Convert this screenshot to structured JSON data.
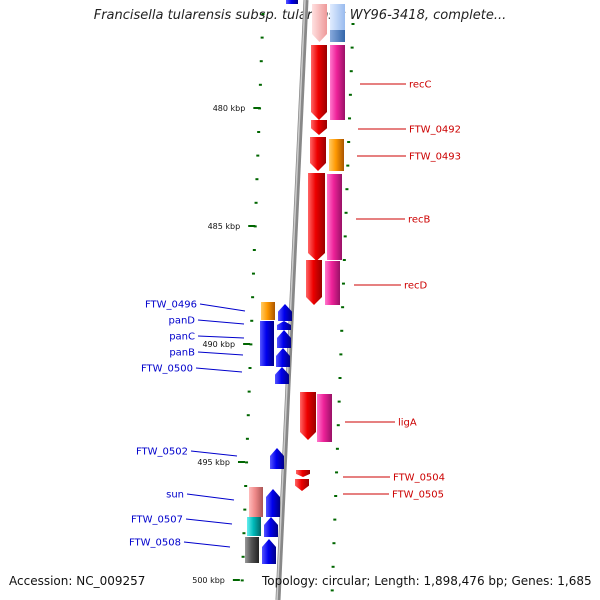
{
  "title": "Francisella tularensis subsp. tularensis WY96-3418, complete...",
  "footer": {
    "accession": "Accession: NC_009257",
    "topology": "Topology: circular; Length: 1,898,476 bp; Genes: 1,685"
  },
  "colors": {
    "forward_gene": "#ee0000",
    "forward_cds": "#ee2299",
    "reverse_gene": "#0000ee",
    "orange": "#ff9900",
    "teal": "#00bbbb",
    "salmon": "#ee8888",
    "gray": "#555555",
    "tick": "#006600",
    "backbone": "#888888"
  },
  "diagram": {
    "kbp_labels": [
      {
        "label": "480 kbp",
        "kbp": 480
      },
      {
        "label": "485 kbp",
        "kbp": 485
      },
      {
        "label": "490 kbp",
        "kbp": 490
      },
      {
        "label": "495 kbp",
        "kbp": 495
      },
      {
        "label": "500 kbp",
        "kbp": 500
      }
    ],
    "genes_right": [
      {
        "name": "recC"
      },
      {
        "name": "FTW_0492"
      },
      {
        "name": "FTW_0493"
      },
      {
        "name": "recB"
      },
      {
        "name": "recD"
      },
      {
        "name": "ligA"
      },
      {
        "name": "FTW_0504"
      },
      {
        "name": "FTW_0505"
      }
    ],
    "genes_left": [
      {
        "name": "FTW_0496"
      },
      {
        "name": "panD"
      },
      {
        "name": "panC"
      },
      {
        "name": "panB"
      },
      {
        "name": "FTW_0500"
      },
      {
        "name": "FTW_0502"
      },
      {
        "name": "sun"
      },
      {
        "name": "FTW_0507"
      },
      {
        "name": "FTW_0508"
      }
    ]
  }
}
